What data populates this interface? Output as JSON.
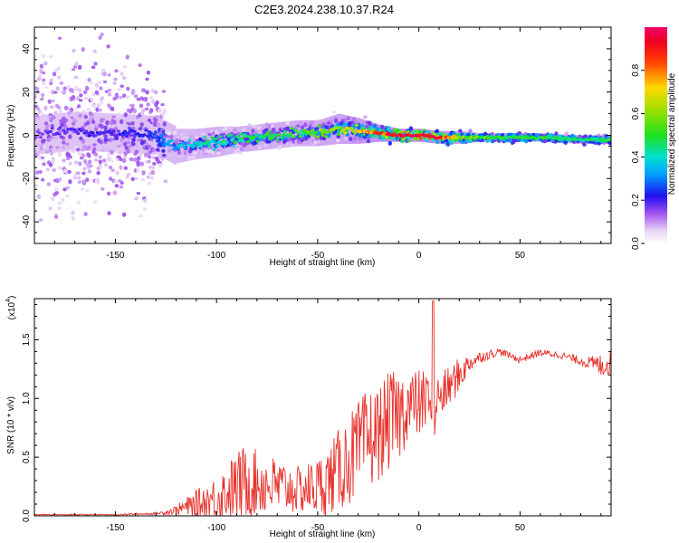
{
  "chart_data": [
    {
      "type": "heatmap",
      "title": "C2E3.2024.238.10.37.R24",
      "xlabel": "Height of straight line (km)",
      "ylabel": "Frequency (Hz)",
      "xlim": [
        -190,
        95
      ],
      "ylim": [
        -50,
        50
      ],
      "xticks": [
        -150,
        -100,
        -50,
        0,
        50
      ],
      "yticks": [
        -40,
        -20,
        0,
        20,
        40
      ],
      "colorbar": {
        "label": "Normalized spectral amplitude",
        "ticks": [
          "0.0",
          "0.2",
          "0.4",
          "0.6",
          "0.8"
        ],
        "tick_values": [
          0.0,
          0.2,
          0.4,
          0.6,
          0.8
        ],
        "range": [
          0,
          1
        ]
      },
      "ridge": {
        "description": "frequency centroid of the signal vs height",
        "x": [
          -190,
          -170,
          -150,
          -130,
          -120,
          -110,
          -100,
          -90,
          -80,
          -70,
          -60,
          -50,
          -40,
          -30,
          -20,
          -10,
          0,
          10,
          20,
          30,
          40,
          60,
          80,
          95
        ],
        "y": [
          0,
          2,
          1,
          0,
          -5,
          -4,
          -3,
          -2,
          -1,
          0,
          1,
          1,
          3,
          2,
          1,
          0,
          0,
          -1,
          -1,
          -1,
          -1,
          -1,
          -2,
          -2
        ],
        "peak_amplitude": [
          0.15,
          0.2,
          0.2,
          0.25,
          0.35,
          0.4,
          0.45,
          0.45,
          0.5,
          0.5,
          0.5,
          0.55,
          0.6,
          0.7,
          0.85,
          1.0,
          1.0,
          0.9,
          0.6,
          0.55,
          0.5,
          0.5,
          0.45,
          0.5
        ],
        "spread_hz": [
          40,
          40,
          40,
          30,
          8,
          7,
          7,
          6,
          6,
          6,
          6,
          6,
          7,
          6,
          4,
          3,
          3,
          3,
          3,
          2,
          2,
          2,
          2,
          2
        ]
      }
    },
    {
      "type": "line",
      "title": "",
      "xlabel": "Height of straight line (km)",
      "ylabel": "SNR (10 * v/v)",
      "scale_note": "(x10",
      "scale_exp": "4",
      "scale_close": ")",
      "xlim": [
        -190,
        95
      ],
      "ylim": [
        0,
        1.85
      ],
      "xticks": [
        -150,
        -100,
        -50,
        0,
        50
      ],
      "yticks": [
        0.0,
        0.5,
        1.0,
        1.5
      ],
      "ytick_labels": [
        "0.0",
        "0.5",
        "1.0",
        "1.5"
      ],
      "series": [
        {
          "name": "SNR",
          "color": "#e8302a",
          "envelope_x": [
            -190,
            -170,
            -150,
            -140,
            -130,
            -125,
            -120,
            -110,
            -100,
            -90,
            -85,
            -80,
            -70,
            -60,
            -50,
            -45,
            -40,
            -35,
            -30,
            -25,
            -20,
            -15,
            -10,
            -5,
            0,
            5,
            10,
            15,
            20,
            25,
            30,
            40,
            50,
            60,
            70,
            80,
            85,
            90,
            95
          ],
          "envelope_y": [
            0.01,
            0.01,
            0.01,
            0.015,
            0.02,
            0.03,
            0.05,
            0.1,
            0.15,
            0.25,
            0.3,
            0.28,
            0.25,
            0.22,
            0.25,
            0.3,
            0.38,
            0.48,
            0.55,
            0.65,
            0.7,
            0.8,
            0.85,
            0.95,
            0.95,
            1.0,
            1.0,
            1.1,
            1.2,
            1.3,
            1.35,
            1.4,
            1.33,
            1.39,
            1.37,
            1.32,
            1.3,
            1.28,
            1.3
          ],
          "noise_amp_y": [
            0.005,
            0.005,
            0.005,
            0.008,
            0.01,
            0.02,
            0.04,
            0.12,
            0.2,
            0.3,
            0.33,
            0.28,
            0.25,
            0.2,
            0.25,
            0.3,
            0.35,
            0.4,
            0.42,
            0.45,
            0.4,
            0.42,
            0.4,
            0.3,
            0.3,
            0.25,
            0.2,
            0.18,
            0.15,
            0.08,
            0.05,
            0.03,
            0.03,
            0.03,
            0.03,
            0.04,
            0.06,
            0.1,
            0.1
          ],
          "spike": {
            "x": 7,
            "y": 1.83
          }
        }
      ]
    }
  ]
}
